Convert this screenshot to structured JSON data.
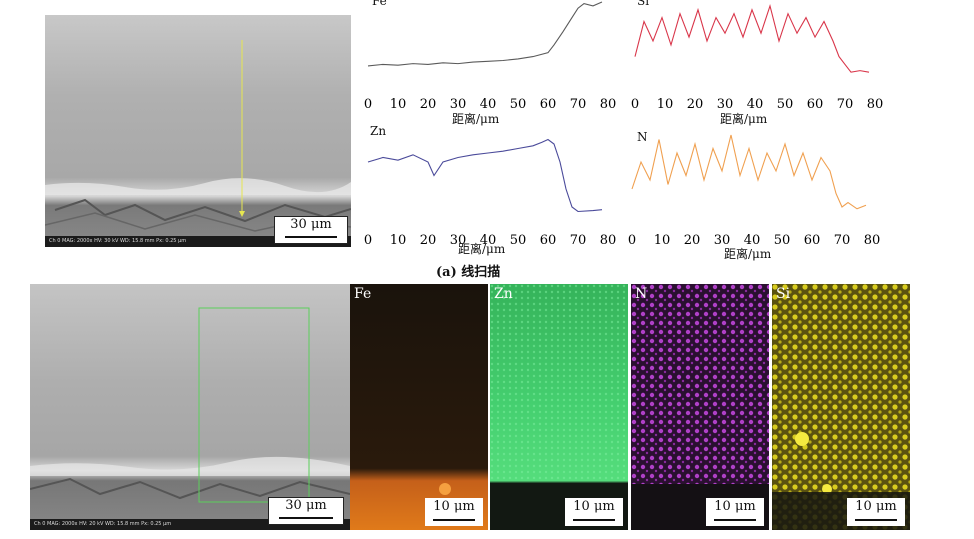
{
  "top_sem": {
    "scale_label": "30 μm",
    "databar": "Ch 0   MAG: 2000x   HV: 30 kV   WD: 15.8 mm   Px: 0.25 μm"
  },
  "bottom_sem": {
    "scale_label": "30 μm",
    "databar": "Ch 0   MAG: 2000x   HV: 20 kV   WD: 15.8 mm   Px: 0.25 μm"
  },
  "caption_a": "(a) 线扫描",
  "line_scans": [
    {
      "element": "Fe",
      "xlabel": "距离/μm",
      "color": "#5a5a5a"
    },
    {
      "element": "Si",
      "xlabel": "距离/μm",
      "color": "#d9364a"
    },
    {
      "element": "Zn",
      "xlabel": "距离/μm",
      "color": "#4a4a9a"
    },
    {
      "element": "N",
      "xlabel": "距离/μm",
      "color": "#f0a050"
    }
  ],
  "x_ticks": [
    "0",
    "10",
    "20",
    "30",
    "40",
    "50",
    "60",
    "70",
    "80"
  ],
  "maps": [
    {
      "element": "Fe",
      "scale_label": "10 μm",
      "color": "#e07a1a"
    },
    {
      "element": "Zn",
      "scale_label": "10 μm",
      "color": "#3fd46a"
    },
    {
      "element": "N",
      "scale_label": "10 μm",
      "color": "#c040d0"
    },
    {
      "element": "Si",
      "scale_label": "10 μm",
      "color": "#e8d81e"
    }
  ],
  "chart_data": [
    {
      "type": "line",
      "title": "",
      "series": [
        {
          "name": "Fe",
          "x": [
            0,
            5,
            10,
            15,
            20,
            25,
            30,
            35,
            40,
            45,
            50,
            55,
            60,
            62,
            65,
            68,
            70,
            72,
            75,
            78
          ],
          "y": [
            0.18,
            0.2,
            0.19,
            0.21,
            0.2,
            0.22,
            0.21,
            0.23,
            0.24,
            0.25,
            0.27,
            0.3,
            0.35,
            0.45,
            0.62,
            0.8,
            0.92,
            0.98,
            0.95,
            1.0
          ]
        }
      ],
      "xlabel": "距离/μm",
      "ylabel": "",
      "xlim": [
        0,
        80
      ]
    },
    {
      "type": "line",
      "title": "",
      "series": [
        {
          "name": "Si",
          "x": [
            0,
            3,
            6,
            9,
            12,
            15,
            18,
            21,
            24,
            27,
            30,
            33,
            36,
            39,
            42,
            45,
            48,
            51,
            54,
            57,
            60,
            63,
            66,
            68,
            70,
            72,
            75,
            78
          ],
          "y": [
            0.3,
            0.75,
            0.5,
            0.8,
            0.45,
            0.85,
            0.55,
            0.9,
            0.5,
            0.8,
            0.6,
            0.85,
            0.55,
            0.9,
            0.6,
            0.95,
            0.5,
            0.85,
            0.6,
            0.8,
            0.55,
            0.75,
            0.5,
            0.3,
            0.2,
            0.1,
            0.12,
            0.1
          ]
        }
      ],
      "xlabel": "距离/μm",
      "ylabel": "",
      "xlim": [
        0,
        80
      ]
    },
    {
      "type": "line",
      "title": "",
      "series": [
        {
          "name": "Zn",
          "x": [
            0,
            5,
            10,
            15,
            20,
            22,
            25,
            30,
            35,
            40,
            45,
            50,
            55,
            58,
            60,
            62,
            64,
            66,
            68,
            70,
            75,
            78
          ],
          "y": [
            0.6,
            0.65,
            0.62,
            0.68,
            0.6,
            0.45,
            0.6,
            0.65,
            0.68,
            0.7,
            0.72,
            0.75,
            0.78,
            0.82,
            0.85,
            0.8,
            0.6,
            0.3,
            0.1,
            0.05,
            0.06,
            0.07
          ]
        }
      ],
      "xlabel": "距离/μm",
      "ylabel": "",
      "xlim": [
        0,
        80
      ]
    },
    {
      "type": "line",
      "title": "",
      "series": [
        {
          "name": "N",
          "x": [
            0,
            3,
            6,
            9,
            12,
            15,
            18,
            21,
            24,
            27,
            30,
            33,
            36,
            39,
            42,
            45,
            48,
            51,
            54,
            57,
            60,
            63,
            66,
            68,
            70,
            72,
            75,
            78
          ],
          "y": [
            0.3,
            0.6,
            0.4,
            0.85,
            0.35,
            0.7,
            0.45,
            0.8,
            0.4,
            0.75,
            0.5,
            0.9,
            0.45,
            0.75,
            0.4,
            0.7,
            0.5,
            0.8,
            0.45,
            0.7,
            0.4,
            0.65,
            0.5,
            0.25,
            0.1,
            0.15,
            0.08,
            0.12
          ]
        }
      ],
      "xlabel": "距离/μm",
      "ylabel": "",
      "xlim": [
        0,
        80
      ]
    }
  ]
}
